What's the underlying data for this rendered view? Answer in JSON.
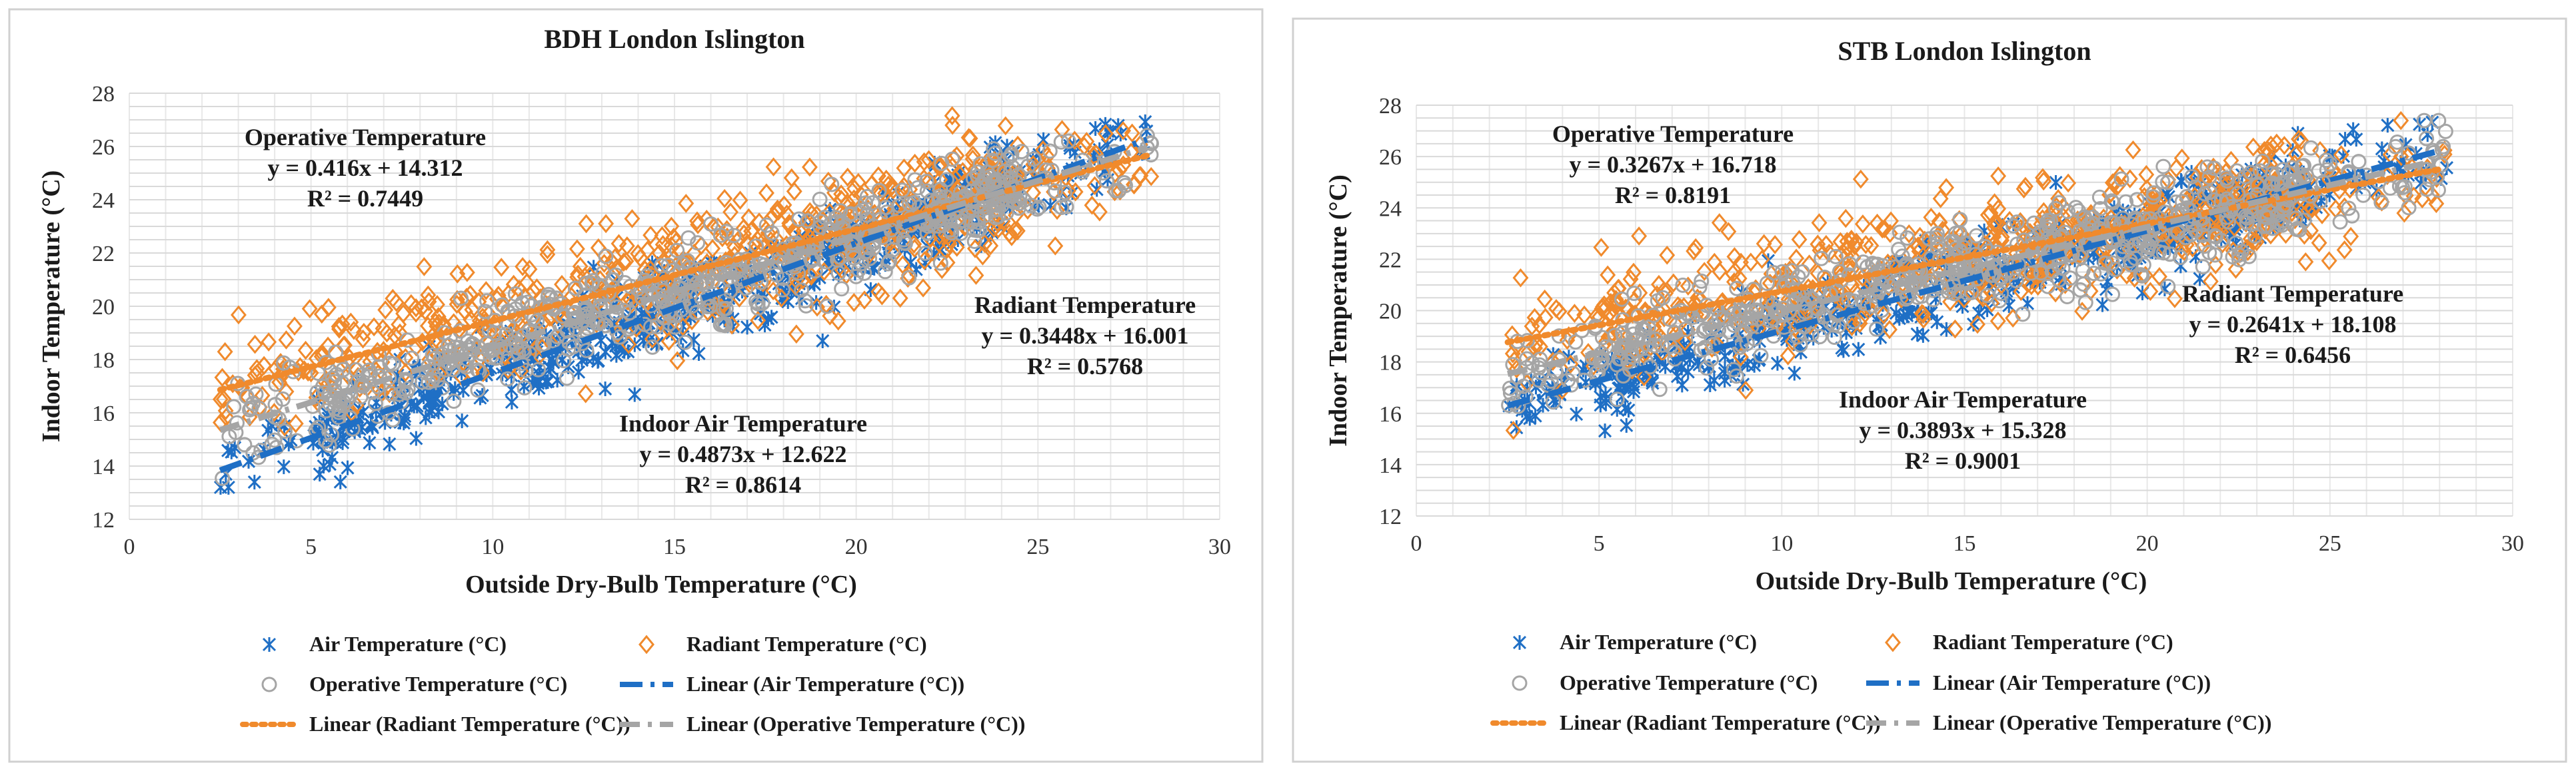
{
  "chart_data": [
    {
      "type": "scatter",
      "title": "BDH London Islington",
      "xlabel": "Outside Dry-Bulb Temperature (°C)",
      "ylabel": "Indoor Temperature (°C)",
      "xlim": [
        0,
        30
      ],
      "ylim": [
        12,
        28
      ],
      "x_ticks": [
        0,
        5,
        10,
        15,
        20,
        25,
        30
      ],
      "y_ticks": [
        12,
        14,
        16,
        18,
        20,
        22,
        24,
        26,
        28
      ],
      "x_tick_labels": [
        "0",
        "5",
        "10",
        "15",
        "20",
        "25",
        "30"
      ],
      "y_tick_labels": [
        "12",
        "14",
        "16",
        "18",
        "20",
        "22",
        "24",
        "26",
        "28"
      ],
      "series": [
        {
          "key": "air",
          "name": "Air Temperature (°C)",
          "trend_name": "Linear (Air Temperature (°C))",
          "color": "#1f6fc5",
          "marker": "x",
          "slope": 0.4873,
          "intercept": 12.622,
          "r2": 0.8614
        },
        {
          "key": "radiant",
          "name": "Radiant Temperature (°C)",
          "trend_name": "Linear (Radiant Temperature (°C))",
          "color": "#f08a2c",
          "marker": "diamond",
          "slope": 0.3448,
          "intercept": 16.001,
          "r2": 0.5768
        },
        {
          "key": "operative",
          "name": "Operative Temperature (°C)",
          "trend_name": "Linear (Operative Temperature (°C))",
          "color": "#a5a5a5",
          "marker": "circle",
          "slope": 0.416,
          "intercept": 14.312,
          "r2": 0.7449
        }
      ],
      "annotations": [
        {
          "label": "Operative Temperature",
          "equation": "y = 0.416x + 14.312",
          "r2_text": "R² = 0.7449"
        },
        {
          "label": "Radiant Temperature",
          "equation": "y = 0.3448x + 16.001",
          "r2_text": "R² = 0.5768"
        },
        {
          "label": "Indoor Air Temperature",
          "equation": "y = 0.4873x + 12.622",
          "r2_text": "R² = 0.8614"
        }
      ]
    },
    {
      "type": "scatter",
      "title": "STB London Islington",
      "xlabel": "Outside Dry-Bulb Temperature (°C)",
      "ylabel": "Indoor Temperature (°C)",
      "xlim": [
        0,
        30
      ],
      "ylim": [
        12,
        28
      ],
      "x_ticks": [
        0,
        5,
        10,
        15,
        20,
        25,
        30
      ],
      "y_ticks": [
        12,
        14,
        16,
        18,
        20,
        22,
        24,
        26,
        28
      ],
      "x_tick_labels": [
        "0",
        "5",
        "10",
        "15",
        "20",
        "25",
        "30"
      ],
      "y_tick_labels": [
        "12",
        "14",
        "16",
        "18",
        "20",
        "22",
        "24",
        "26",
        "28"
      ],
      "series": [
        {
          "key": "air",
          "name": "Air Temperature (°C)",
          "trend_name": "Linear (Air Temperature (°C))",
          "color": "#1f6fc5",
          "marker": "x",
          "slope": 0.3893,
          "intercept": 15.328,
          "r2": 0.9001
        },
        {
          "key": "radiant",
          "name": "Radiant Temperature (°C)",
          "trend_name": "Linear (Radiant Temperature (°C))",
          "color": "#f08a2c",
          "marker": "diamond",
          "slope": 0.2641,
          "intercept": 18.108,
          "r2": 0.6456
        },
        {
          "key": "operative",
          "name": "Operative Temperature (°C)",
          "trend_name": "Linear (Operative Temperature (°C))",
          "color": "#a5a5a5",
          "marker": "circle",
          "slope": 0.3267,
          "intercept": 16.718,
          "r2": 0.8191
        }
      ],
      "annotations": [
        {
          "label": "Operative Temperature",
          "equation": "y = 0.3267x + 16.718",
          "r2_text": "R² = 0.8191"
        },
        {
          "label": "Radiant Temperature",
          "equation": "y = 0.2641x + 18.108",
          "r2_text": "R² = 0.6456"
        },
        {
          "label": "Indoor Air Temperature",
          "equation": "y = 0.3893x + 15.328",
          "r2_text": "R² = 0.9001"
        }
      ]
    }
  ]
}
